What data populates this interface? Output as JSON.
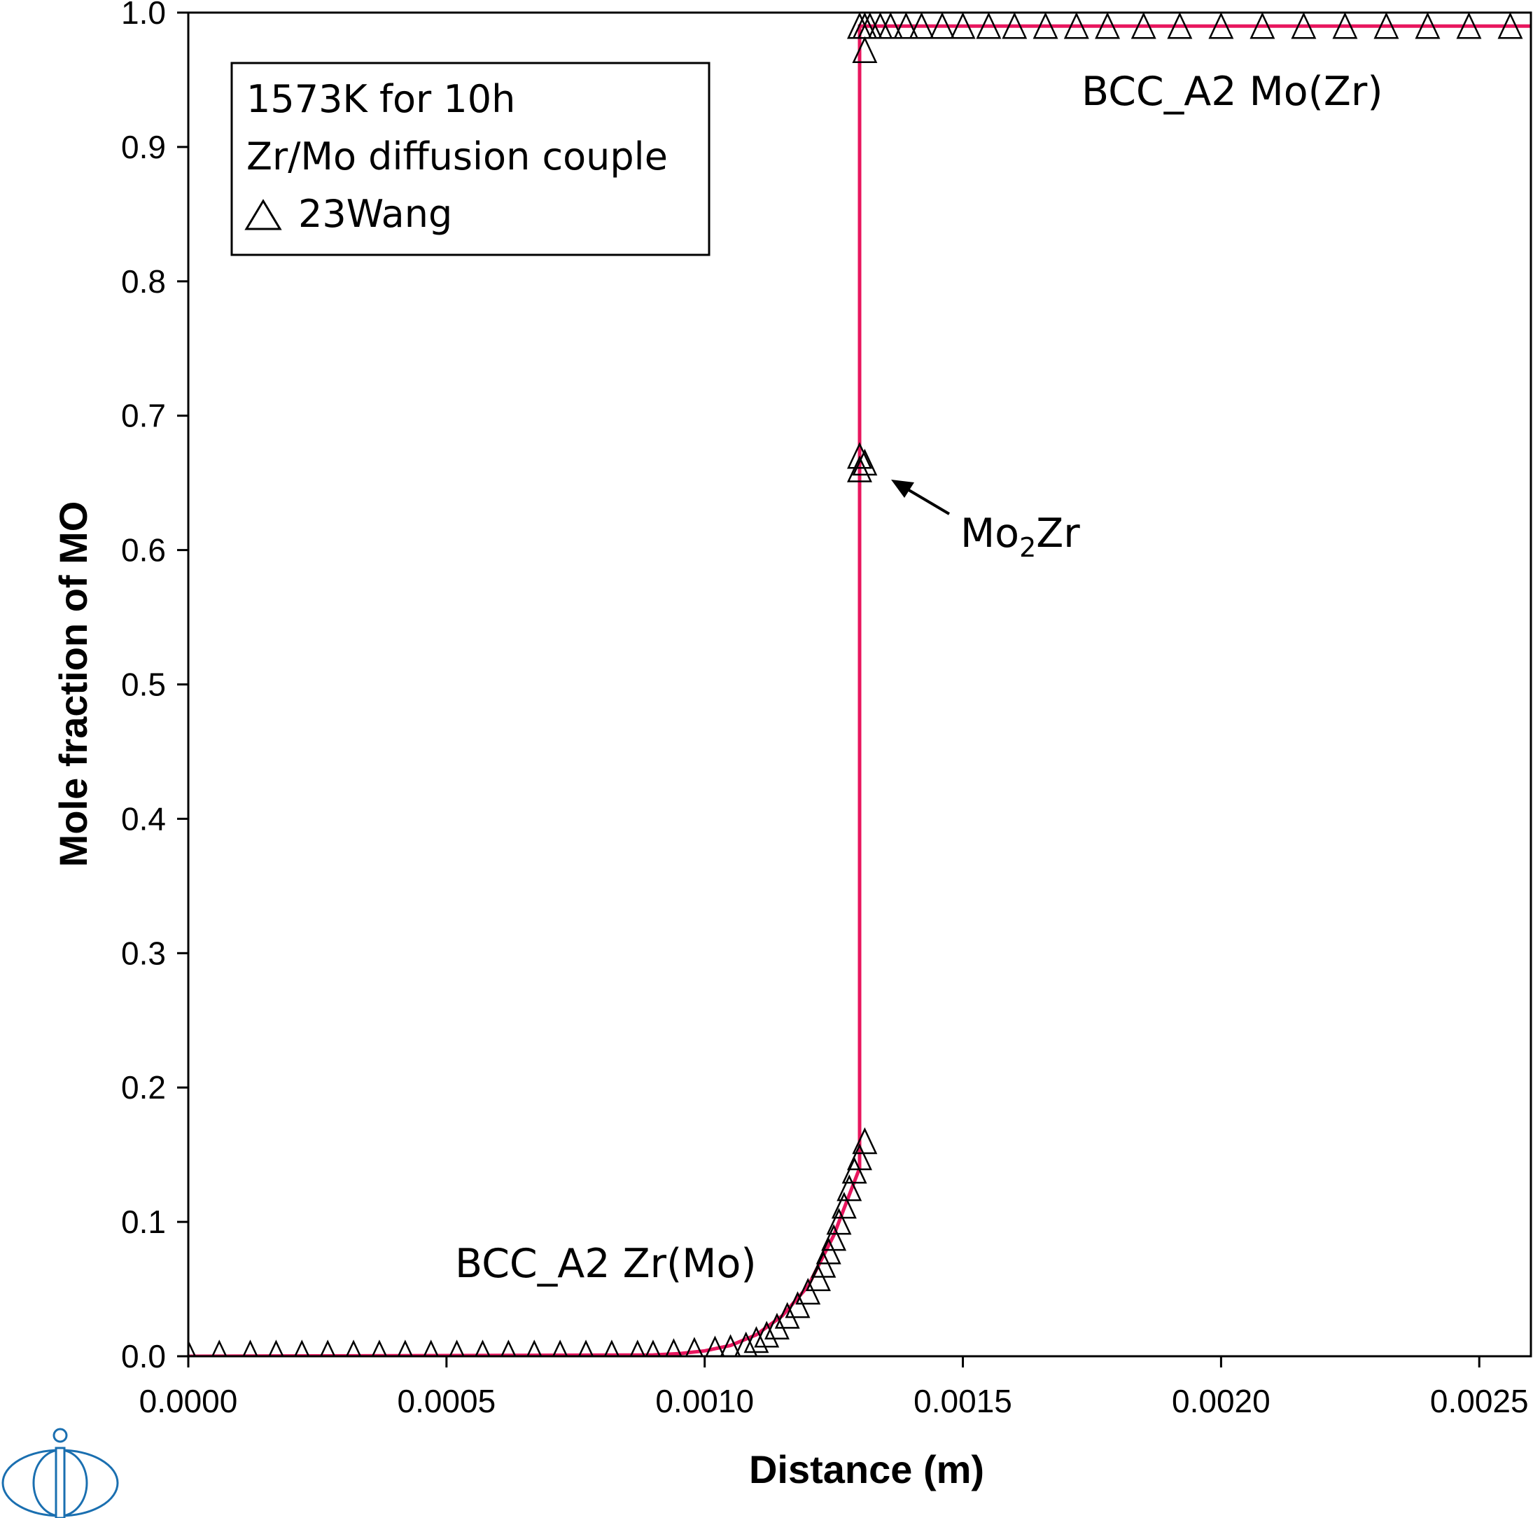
{
  "chart_data": {
    "type": "line",
    "xlabel": "Distance (m)",
    "ylabel": "Mole fraction of MO",
    "xlim": [
      0,
      0.0026
    ],
    "ylim": [
      0,
      1.0
    ],
    "x_ticks": [
      "0.0000",
      "0.0005",
      "0.0010",
      "0.0015",
      "0.0020",
      "0.0025"
    ],
    "y_ticks": [
      "0.0",
      "0.1",
      "0.2",
      "0.3",
      "0.4",
      "0.5",
      "0.6",
      "0.7",
      "0.8",
      "0.9",
      "1.0"
    ],
    "legend": {
      "lines": [
        "1573K for 10h",
        "Zr/Mo diffusion couple"
      ],
      "marker_label": "23Wang"
    },
    "annotations": {
      "mo_zr_phase": "BCC_A2 Mo(Zr)",
      "zr_mo_phase": "BCC_A2 Zr(Mo)",
      "intermetallic": {
        "base": "Mo",
        "subscript": "2",
        "suffix": "Zr"
      }
    },
    "colors": {
      "calc_line": "#e8165e",
      "markers": "#000000",
      "logo": "#1a6fb0"
    },
    "series": [
      {
        "kind": "line",
        "x": [
          0,
          0.0009,
          0.00095,
          0.001,
          0.00105,
          0.0011,
          0.00115,
          0.0012,
          0.00125,
          0.00128,
          0.0013,
          0.0013,
          0.0013,
          0.0013,
          0.0026
        ],
        "y": [
          0,
          0.001,
          0.002,
          0.004,
          0.008,
          0.016,
          0.03,
          0.052,
          0.09,
          0.12,
          0.14,
          0.66,
          0.67,
          0.99,
          0.99
        ]
      },
      {
        "kind": "markers",
        "marker": "triangle",
        "name": "23Wang",
        "x": [
          0,
          6e-05,
          0.00012,
          0.00017,
          0.00022,
          0.00027,
          0.00032,
          0.00037,
          0.00042,
          0.00047,
          0.00052,
          0.00057,
          0.00062,
          0.00067,
          0.00072,
          0.00077,
          0.00082,
          0.00087,
          0.0009,
          0.00094,
          0.00098,
          0.00102,
          0.00105,
          0.00108,
          0.0011,
          0.00112,
          0.00114,
          0.00116,
          0.00118,
          0.0012,
          0.00122,
          0.00123,
          0.00124,
          0.00125,
          0.00126,
          0.00127,
          0.00128,
          0.00129,
          0.0013,
          0.00131,
          0.0013,
          0.00131,
          0.0013,
          0.00131,
          0.0013,
          0.00131,
          0.00132,
          0.00134,
          0.00136,
          0.00139,
          0.00142,
          0.00146,
          0.0015,
          0.00155,
          0.0016,
          0.00166,
          0.00172,
          0.00178,
          0.00185,
          0.00192,
          0.002,
          0.00208,
          0.00216,
          0.00224,
          0.00232,
          0.0024,
          0.00248,
          0.00256
        ],
        "y": [
          0.002,
          0.002,
          0.002,
          0.002,
          0.002,
          0.002,
          0.002,
          0.002,
          0.002,
          0.002,
          0.002,
          0.002,
          0.002,
          0.002,
          0.002,
          0.002,
          0.002,
          0.002,
          0.002,
          0.003,
          0.004,
          0.005,
          0.006,
          0.008,
          0.012,
          0.016,
          0.022,
          0.03,
          0.038,
          0.048,
          0.058,
          0.068,
          0.078,
          0.088,
          0.1,
          0.112,
          0.125,
          0.138,
          0.148,
          0.16,
          0.66,
          0.665,
          0.67,
          0.972,
          0.99,
          0.99,
          0.99,
          0.99,
          0.99,
          0.99,
          0.99,
          0.99,
          0.99,
          0.99,
          0.99,
          0.99,
          0.99,
          0.99,
          0.99,
          0.99,
          0.99,
          0.99,
          0.99,
          0.99,
          0.99,
          0.99,
          0.99,
          0.99
        ]
      }
    ]
  }
}
